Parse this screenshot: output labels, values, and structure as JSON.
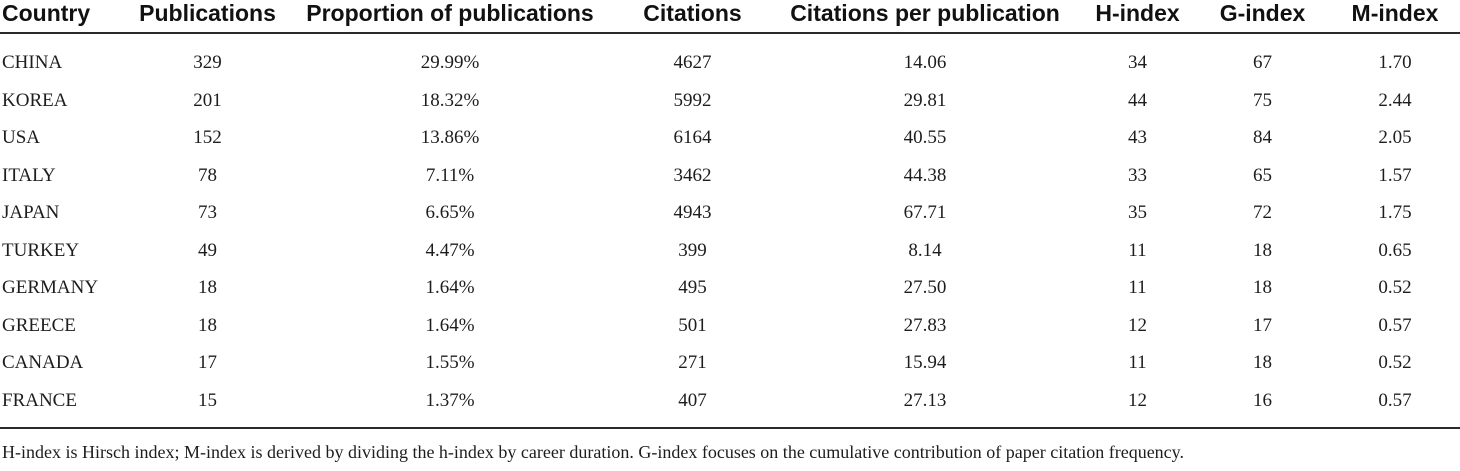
{
  "table": {
    "headers": [
      "Country",
      "Publications",
      "Proportion of publications",
      "Citations",
      "Citations per publication",
      "H-index",
      "G-index",
      "M-index"
    ],
    "rows": [
      [
        "CHINA",
        "329",
        "29.99%",
        "4627",
        "14.06",
        "34",
        "67",
        "1.70"
      ],
      [
        "KOREA",
        "201",
        "18.32%",
        "5992",
        "29.81",
        "44",
        "75",
        "2.44"
      ],
      [
        "USA",
        "152",
        "13.86%",
        "6164",
        "40.55",
        "43",
        "84",
        "2.05"
      ],
      [
        "ITALY",
        "78",
        "7.11%",
        "3462",
        "44.38",
        "33",
        "65",
        "1.57"
      ],
      [
        "JAPAN",
        "73",
        "6.65%",
        "4943",
        "67.71",
        "35",
        "72",
        "1.75"
      ],
      [
        "TURKEY",
        "49",
        "4.47%",
        "399",
        "8.14",
        "11",
        "18",
        "0.65"
      ],
      [
        "GERMANY",
        "18",
        "1.64%",
        "495",
        "27.50",
        "11",
        "18",
        "0.52"
      ],
      [
        "GREECE",
        "18",
        "1.64%",
        "501",
        "27.83",
        "12",
        "17",
        "0.57"
      ],
      [
        "CANADA",
        "17",
        "1.55%",
        "271",
        "15.94",
        "11",
        "18",
        "0.52"
      ],
      [
        "FRANCE",
        "15",
        "1.37%",
        "407",
        "27.13",
        "12",
        "16",
        "0.57"
      ]
    ]
  },
  "footnote": "H-index is Hirsch index; M-index is derived by dividing the h-index by career duration. G-index focuses on the cumulative contribution of paper citation frequency."
}
